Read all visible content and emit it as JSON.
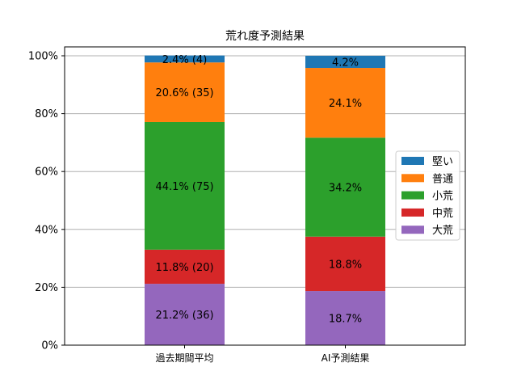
{
  "chart_data": {
    "type": "bar",
    "stacked": true,
    "title": "荒れ度予測結果",
    "xlabel": "",
    "ylabel": "",
    "ylim": [
      0,
      100
    ],
    "y_tick_labels": [
      "0%",
      "20%",
      "40%",
      "60%",
      "80%",
      "100%"
    ],
    "y_ticks": [
      0,
      20,
      40,
      60,
      80,
      100
    ],
    "grid": "horizontal",
    "legend_placement": "center-right",
    "categories": [
      "過去期間平均",
      "AI予測結果"
    ],
    "legend_order": [
      "堅い",
      "普通",
      "小荒",
      "中荒",
      "大荒"
    ],
    "series": [
      {
        "name": "大荒",
        "color": "#9467bd",
        "values": [
          21.2,
          18.7
        ],
        "labels": [
          "21.2% (36)",
          "18.7%"
        ]
      },
      {
        "name": "中荒",
        "color": "#d62728",
        "values": [
          11.8,
          18.8
        ],
        "labels": [
          "11.8% (20)",
          "18.8%"
        ]
      },
      {
        "name": "小荒",
        "color": "#2ca02c",
        "values": [
          44.1,
          34.2
        ],
        "labels": [
          "44.1% (75)",
          "34.2%"
        ]
      },
      {
        "name": "普通",
        "color": "#ff7f0e",
        "values": [
          20.6,
          24.1
        ],
        "labels": [
          "20.6% (35)",
          "24.1%"
        ]
      },
      {
        "name": "堅い",
        "color": "#1f77b4",
        "values": [
          2.4,
          4.2
        ],
        "labels": [
          "2.4% (4)",
          "4.2%"
        ]
      }
    ]
  }
}
